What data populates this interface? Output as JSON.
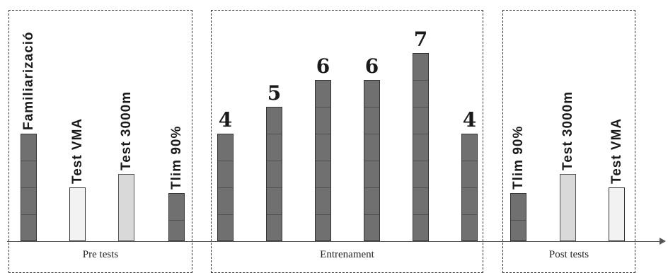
{
  "groups": [
    {
      "label": "Pre tests"
    },
    {
      "label": "Entrenament"
    },
    {
      "label": "Post tests"
    }
  ],
  "bars": [
    {
      "label": "Familiarizació",
      "value": 4,
      "shade": "dark"
    },
    {
      "label": "Test VMA",
      "value": 2,
      "shade": "white"
    },
    {
      "label": "Test 3000m",
      "value": 2.5,
      "shade": "light"
    },
    {
      "label": "Tlim 90%",
      "value": 1.8,
      "shade": "dark"
    },
    {
      "label": "4",
      "value": 4,
      "shade": "dark"
    },
    {
      "label": "5",
      "value": 5,
      "shade": "dark"
    },
    {
      "label": "6",
      "value": 6,
      "shade": "dark"
    },
    {
      "label": "6",
      "value": 6,
      "shade": "dark"
    },
    {
      "label": "7",
      "value": 7,
      "shade": "dark"
    },
    {
      "label": "4",
      "value": 4,
      "shade": "dark"
    },
    {
      "label": "Tlim 90%",
      "value": 1.8,
      "shade": "dark"
    },
    {
      "label": "Test 3000m",
      "value": 2.5,
      "shade": "light"
    },
    {
      "label": "Test VMA",
      "value": 2,
      "shade": "white"
    }
  ],
  "colors": {
    "dark": "#707070",
    "light": "#d9d9d9",
    "white": "#f2f2f2",
    "border": "#333333"
  }
}
